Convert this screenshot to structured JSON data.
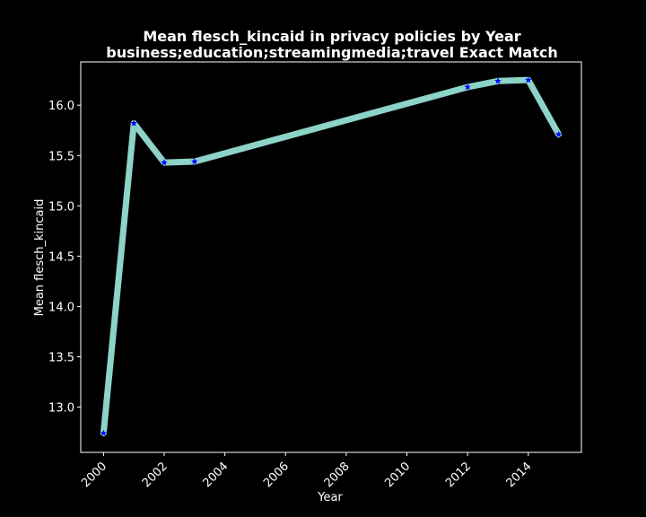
{
  "chart_data": {
    "type": "line",
    "title": "Mean flesch_kincaid in privacy policies by Year",
    "subtitle": "business;education;streamingmedia;travel Exact Match",
    "xlabel": "Year",
    "ylabel": "Mean flesch_kincaid",
    "x": [
      2000,
      2001,
      2002,
      2003,
      2012,
      2013,
      2014,
      2015
    ],
    "series": [
      {
        "values": [
          12.74,
          15.82,
          15.43,
          15.44,
          16.18,
          16.24,
          16.25,
          15.71
        ]
      }
    ],
    "xlim": [
      1999.25,
      2015.75
    ],
    "ylim": [
      12.55,
      16.43
    ],
    "xticks": [
      "2000",
      "2002",
      "2004",
      "2006",
      "2008",
      "2010",
      "2012",
      "2014"
    ],
    "yticks": [
      "13.0",
      "13.5",
      "14.0",
      "14.5",
      "15.0",
      "15.5",
      "16.0"
    ],
    "grid": false,
    "colors": {
      "background": "#000000",
      "line": "#8dd3c7",
      "marker": "#0000ff",
      "axes": "#ffffff"
    }
  }
}
